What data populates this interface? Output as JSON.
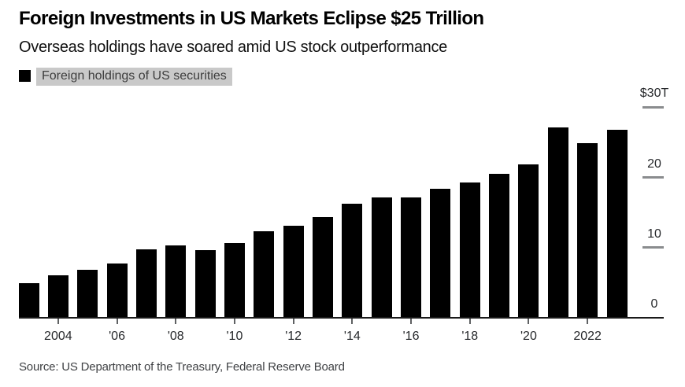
{
  "header": {
    "title": "Foreign Investments in US Markets Eclipse $25 Trillion",
    "subtitle": "Overseas holdings have soared amid US stock outperformance"
  },
  "legend": {
    "label": "Foreign holdings of US securities",
    "swatch_color": "#000000",
    "highlight_color": "#c9c9c9"
  },
  "chart_data": {
    "type": "bar",
    "title": "Foreign Investments in US Markets Eclipse $25 Trillion",
    "subtitle": "Overseas holdings have soared amid US stock outperformance",
    "series_name": "Foreign holdings of US securities",
    "unit": "trillions of US dollars",
    "categories": [
      2003,
      2004,
      2005,
      2006,
      2007,
      2008,
      2009,
      2010,
      2011,
      2012,
      2013,
      2014,
      2015,
      2016,
      2017,
      2018,
      2019,
      2020,
      2021,
      2022,
      2023
    ],
    "values": [
      4.9,
      6.0,
      6.8,
      7.7,
      9.7,
      10.3,
      9.6,
      10.6,
      12.3,
      13.1,
      14.3,
      16.3,
      17.2,
      17.1,
      18.4,
      19.3,
      20.5,
      21.9,
      27.1,
      24.9,
      26.8
    ],
    "ylim": [
      0,
      30
    ],
    "yticks": [
      {
        "value": 30,
        "label": "$30T"
      },
      {
        "value": 20,
        "label": "20"
      },
      {
        "value": 10,
        "label": "10"
      },
      {
        "value": 0,
        "label": "0"
      }
    ],
    "xticks": [
      {
        "year": 2004,
        "label": "2004"
      },
      {
        "year": 2006,
        "label": "'06"
      },
      {
        "year": 2008,
        "label": "'08"
      },
      {
        "year": 2010,
        "label": "'10"
      },
      {
        "year": 2012,
        "label": "'12"
      },
      {
        "year": 2014,
        "label": "'14"
      },
      {
        "year": 2016,
        "label": "'16"
      },
      {
        "year": 2018,
        "label": "'18"
      },
      {
        "year": 2020,
        "label": "'20"
      },
      {
        "year": 2022,
        "label": "2022"
      }
    ],
    "bar_color": "#000000",
    "axis_line_color": "#1a1a1a",
    "tick_dash_color": "#8a8c8e",
    "xtick_mark_color": "#5f6163",
    "grid": false,
    "legend_position": "top-left"
  },
  "source": "Source: US Department of the Treasury, Federal Reserve Board"
}
